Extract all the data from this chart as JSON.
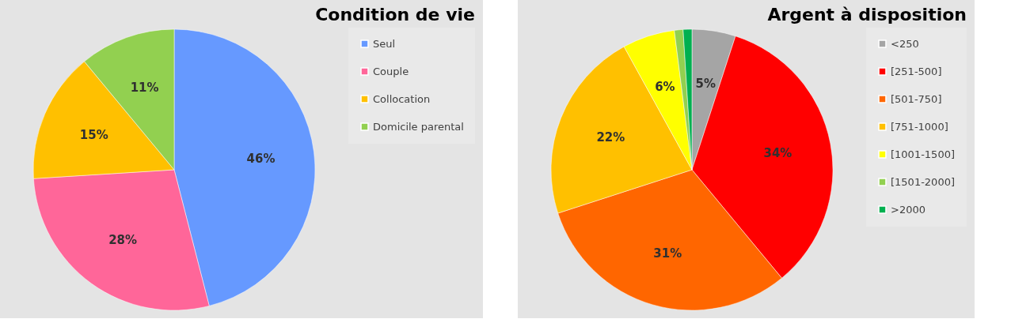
{
  "chart_data": [
    {
      "type": "pie",
      "title": "Condition de vie",
      "categories": [
        "Seul",
        "Couple",
        "Collocation",
        "Domicile parental"
      ],
      "values": [
        46,
        28,
        15,
        11
      ],
      "colors": [
        "#6699ff",
        "#ff6699",
        "#ffc000",
        "#92d050"
      ],
      "value_labels": [
        "46%",
        "28%",
        "15%",
        "11%"
      ],
      "legend": "right"
    },
    {
      "type": "pie",
      "title": "Argent à disposition",
      "categories": [
        "<250",
        "[251-500]",
        "[501-750]",
        "[751-1000]",
        "[1001-1500]",
        "[1501-2000]",
        ">2000"
      ],
      "values": [
        5,
        34,
        31,
        22,
        6,
        1,
        1
      ],
      "colors": [
        "#a5a5a5",
        "#ff0000",
        "#ff6600",
        "#ffc000",
        "#ffff00",
        "#92d050",
        "#00b050"
      ],
      "value_labels": [
        "5%",
        "34%",
        "31%",
        "22%",
        "6%",
        null,
        null
      ],
      "legend": "right"
    }
  ]
}
